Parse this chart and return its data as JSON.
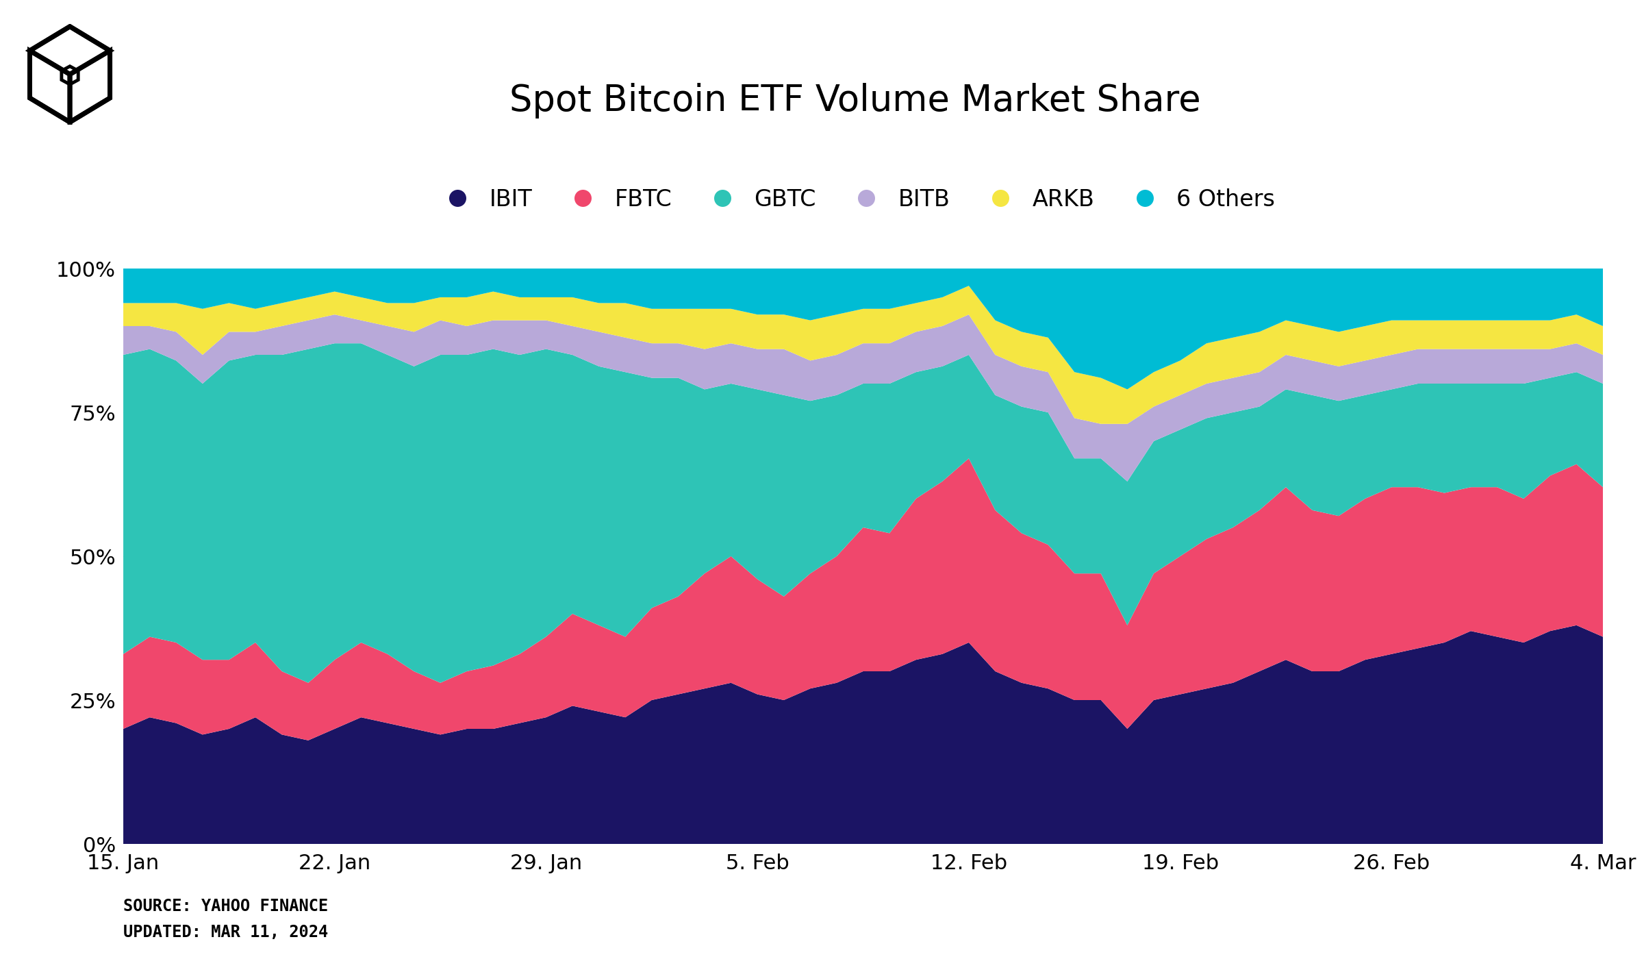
{
  "title": "Spot Bitcoin ETF Volume Market Share",
  "colors": {
    "IBIT": "#1b1464",
    "FBTC": "#f0476c",
    "GBTC": "#2ec4b6",
    "BITB": "#b8a9d9",
    "ARKB": "#f5e642",
    "6Others": "#00bcd4"
  },
  "legend_labels": [
    "IBIT",
    "FBTC",
    "GBTC",
    "BITB",
    "ARKB",
    "6 Others"
  ],
  "background_color": "#ffffff",
  "purple_line_color": "#9900cc",
  "xtick_labels": [
    "15. Jan",
    "22. Jan",
    "29. Jan",
    "5. Feb",
    "12. Feb",
    "19. Feb",
    "26. Feb",
    "4. Mar"
  ],
  "IBIT": [
    0.2,
    0.22,
    0.21,
    0.19,
    0.2,
    0.22,
    0.19,
    0.18,
    0.2,
    0.22,
    0.21,
    0.2,
    0.19,
    0.2,
    0.2,
    0.21,
    0.22,
    0.24,
    0.23,
    0.22,
    0.25,
    0.26,
    0.27,
    0.28,
    0.26,
    0.25,
    0.27,
    0.28,
    0.3,
    0.3,
    0.32,
    0.33,
    0.35,
    0.3,
    0.28,
    0.27,
    0.25,
    0.25,
    0.2,
    0.25,
    0.26,
    0.27,
    0.28,
    0.3,
    0.32,
    0.3,
    0.3,
    0.32,
    0.33,
    0.34,
    0.35,
    0.37,
    0.36,
    0.35,
    0.37,
    0.38,
    0.36
  ],
  "FBTC": [
    0.13,
    0.14,
    0.14,
    0.13,
    0.12,
    0.13,
    0.11,
    0.1,
    0.12,
    0.13,
    0.12,
    0.1,
    0.09,
    0.1,
    0.11,
    0.12,
    0.14,
    0.16,
    0.15,
    0.14,
    0.16,
    0.17,
    0.2,
    0.22,
    0.2,
    0.18,
    0.2,
    0.22,
    0.25,
    0.24,
    0.28,
    0.3,
    0.32,
    0.28,
    0.26,
    0.25,
    0.22,
    0.22,
    0.18,
    0.22,
    0.24,
    0.26,
    0.27,
    0.28,
    0.3,
    0.28,
    0.27,
    0.28,
    0.29,
    0.28,
    0.26,
    0.25,
    0.26,
    0.25,
    0.27,
    0.28,
    0.26
  ],
  "GBTC": [
    0.52,
    0.5,
    0.49,
    0.48,
    0.52,
    0.5,
    0.55,
    0.58,
    0.55,
    0.52,
    0.52,
    0.53,
    0.57,
    0.55,
    0.55,
    0.52,
    0.5,
    0.45,
    0.45,
    0.46,
    0.4,
    0.38,
    0.32,
    0.3,
    0.33,
    0.35,
    0.3,
    0.28,
    0.25,
    0.26,
    0.22,
    0.2,
    0.18,
    0.2,
    0.22,
    0.23,
    0.2,
    0.2,
    0.25,
    0.23,
    0.22,
    0.21,
    0.2,
    0.18,
    0.17,
    0.2,
    0.2,
    0.18,
    0.17,
    0.18,
    0.19,
    0.18,
    0.18,
    0.2,
    0.17,
    0.16,
    0.18
  ],
  "BITB": [
    0.05,
    0.04,
    0.05,
    0.05,
    0.05,
    0.04,
    0.05,
    0.05,
    0.05,
    0.04,
    0.05,
    0.06,
    0.06,
    0.05,
    0.05,
    0.06,
    0.05,
    0.05,
    0.06,
    0.06,
    0.06,
    0.06,
    0.07,
    0.07,
    0.07,
    0.08,
    0.07,
    0.07,
    0.07,
    0.07,
    0.07,
    0.07,
    0.07,
    0.07,
    0.07,
    0.07,
    0.07,
    0.06,
    0.1,
    0.06,
    0.06,
    0.06,
    0.06,
    0.06,
    0.06,
    0.06,
    0.06,
    0.06,
    0.06,
    0.06,
    0.06,
    0.06,
    0.06,
    0.06,
    0.05,
    0.05,
    0.05
  ],
  "ARKB": [
    0.04,
    0.04,
    0.05,
    0.08,
    0.05,
    0.04,
    0.04,
    0.04,
    0.04,
    0.04,
    0.04,
    0.05,
    0.04,
    0.05,
    0.05,
    0.04,
    0.04,
    0.05,
    0.05,
    0.06,
    0.06,
    0.06,
    0.07,
    0.06,
    0.06,
    0.06,
    0.07,
    0.07,
    0.06,
    0.06,
    0.05,
    0.05,
    0.05,
    0.06,
    0.06,
    0.06,
    0.08,
    0.08,
    0.06,
    0.06,
    0.06,
    0.07,
    0.07,
    0.07,
    0.06,
    0.06,
    0.06,
    0.06,
    0.06,
    0.05,
    0.05,
    0.05,
    0.05,
    0.05,
    0.05,
    0.05,
    0.05
  ],
  "6Others": [
    0.06,
    0.06,
    0.06,
    0.07,
    0.06,
    0.07,
    0.06,
    0.05,
    0.04,
    0.05,
    0.06,
    0.06,
    0.05,
    0.05,
    0.04,
    0.05,
    0.05,
    0.05,
    0.06,
    0.06,
    0.07,
    0.07,
    0.07,
    0.07,
    0.08,
    0.08,
    0.09,
    0.08,
    0.07,
    0.07,
    0.06,
    0.05,
    0.03,
    0.09,
    0.11,
    0.12,
    0.18,
    0.19,
    0.21,
    0.18,
    0.16,
    0.13,
    0.12,
    0.11,
    0.09,
    0.1,
    0.11,
    0.1,
    0.09,
    0.09,
    0.09,
    0.09,
    0.09,
    0.09,
    0.09,
    0.08,
    0.1
  ]
}
